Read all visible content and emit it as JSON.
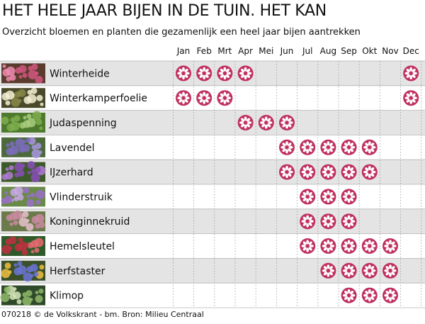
{
  "header": {
    "title": "HET HELE JAAR BIJEN IN DE TUIN. HET KAN",
    "subtitle": "Overzicht bloemen en planten die gezamenlijk een heel jaar bijen aantrekken"
  },
  "footer": {
    "credit": "070218 © de Volkskrant - bm. Bron: Milieu Centraal"
  },
  "colors": {
    "flower": "#c0305f",
    "flower_center": "#c0305f",
    "row_band": "#e4e4e4",
    "row_separator": "#b5b5b5",
    "grid_dotted": "#9a9a9a"
  },
  "chart_data": {
    "type": "table",
    "months": [
      "Jan",
      "Feb",
      "Mrt",
      "Apr",
      "Mei",
      "Jun",
      "Jul",
      "Aug",
      "Sep",
      "Okt",
      "Nov",
      "Dec"
    ],
    "rows": [
      {
        "plant": "Winterheide",
        "thumb": "pink-heather",
        "bloom_months": [
          1,
          2,
          3,
          4,
          12
        ]
      },
      {
        "plant": "Winterkamperfoelie",
        "thumb": "white-honeysuckle",
        "bloom_months": [
          1,
          2,
          3,
          12
        ]
      },
      {
        "plant": "Judaspenning",
        "thumb": "green-leaves",
        "bloom_months": [
          4,
          5,
          6
        ]
      },
      {
        "plant": "Lavendel",
        "thumb": "lavender",
        "bloom_months": [
          6,
          7,
          8,
          9,
          10
        ]
      },
      {
        "plant": "IJzerhard",
        "thumb": "verbena-purple",
        "bloom_months": [
          6,
          7,
          8,
          9,
          10
        ]
      },
      {
        "plant": "Vlinderstruik",
        "thumb": "buddleja-purple",
        "bloom_months": [
          7,
          8,
          9
        ]
      },
      {
        "plant": "Koninginnekruid",
        "thumb": "pink-eupatorium",
        "bloom_months": [
          7,
          8,
          9
        ]
      },
      {
        "plant": "Hemelsleutel",
        "thumb": "red-sedum",
        "bloom_months": [
          7,
          8,
          9,
          10,
          11
        ]
      },
      {
        "plant": "Herfstaster",
        "thumb": "blue-aster",
        "bloom_months": [
          8,
          9,
          10,
          11
        ]
      },
      {
        "plant": "Klimop",
        "thumb": "green-ivy",
        "bloom_months": [
          9,
          10,
          11
        ]
      }
    ]
  }
}
